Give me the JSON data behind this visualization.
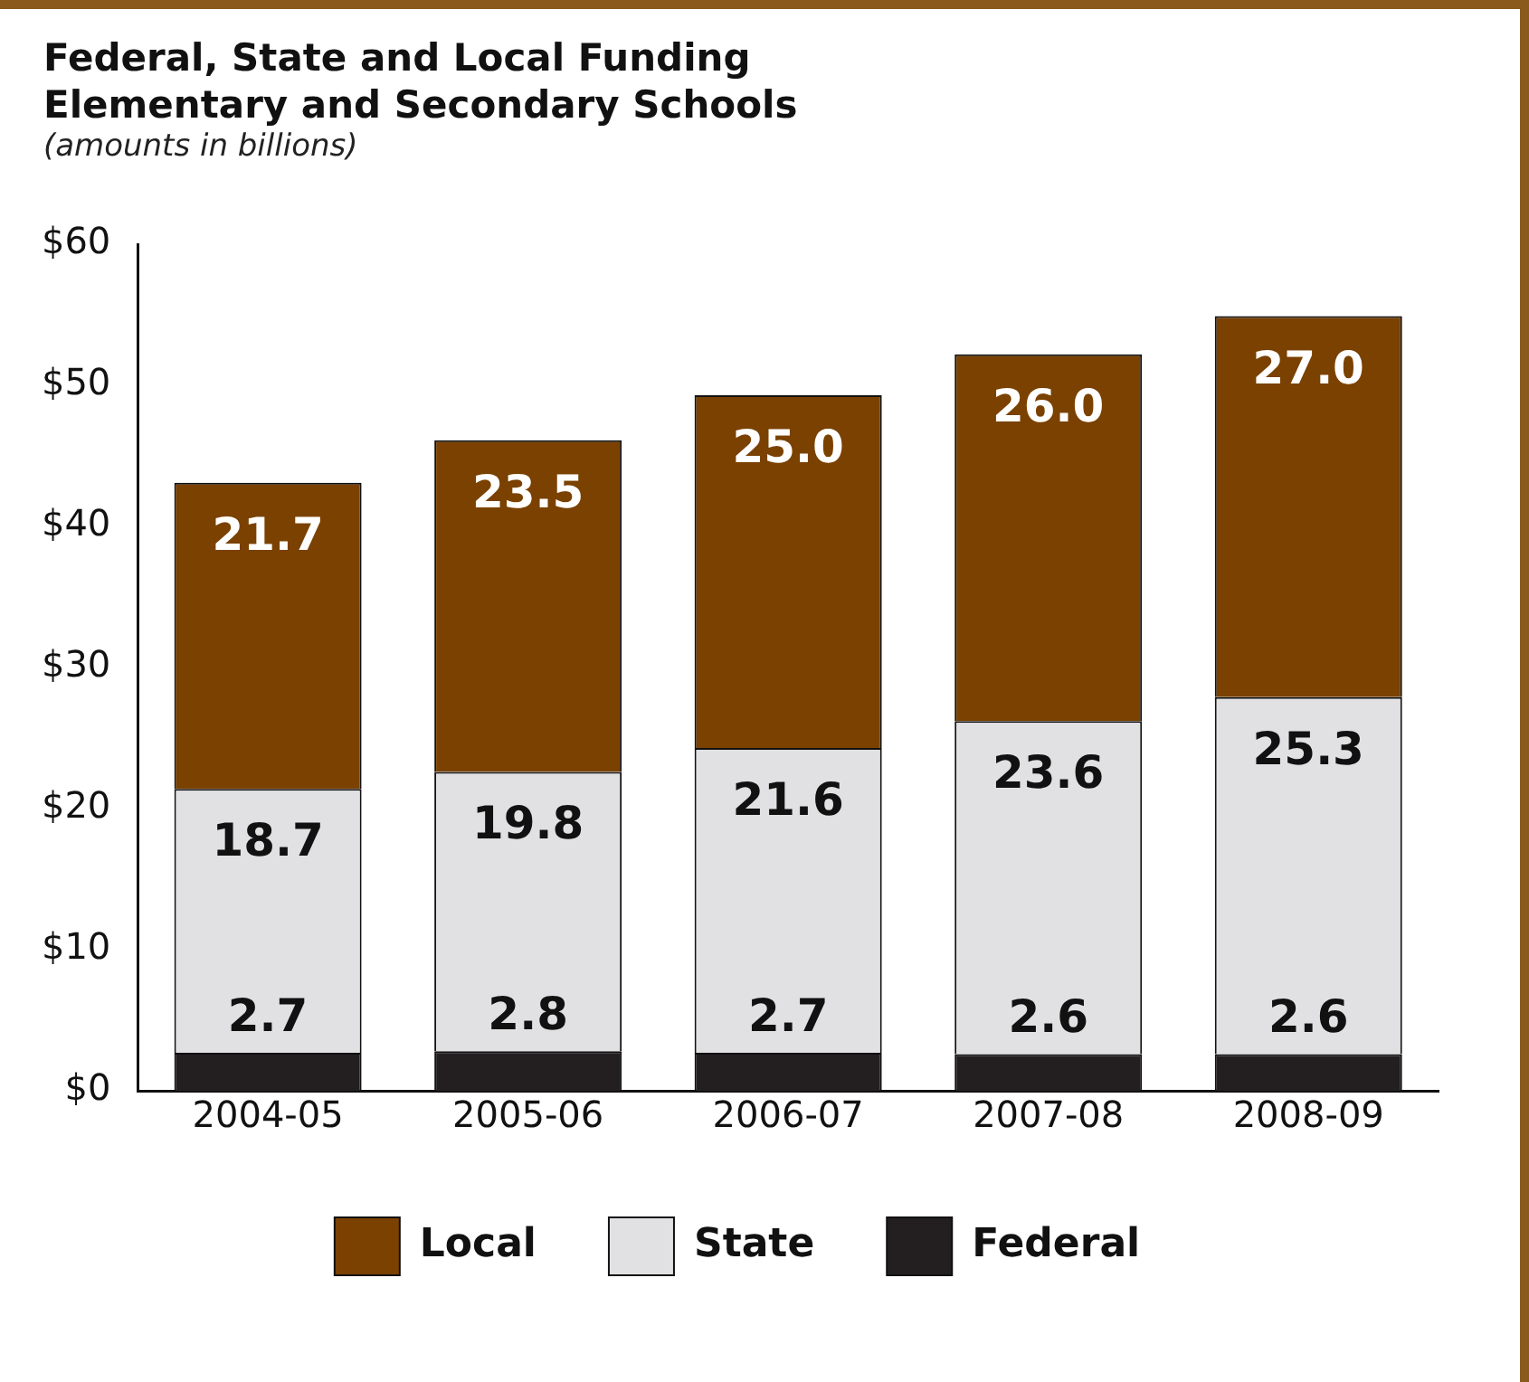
{
  "chart_data": {
    "type": "bar",
    "title": "Federal, State and Local Funding\nElementary and Secondary Schools",
    "subtitle": "(amounts in billions)",
    "categories": [
      "2004-05",
      "2005-06",
      "2006-07",
      "2007-08",
      "2008-09"
    ],
    "stacked": true,
    "series": [
      {
        "name": "Federal",
        "color": "#231f20",
        "values": [
          2.7,
          2.8,
          2.7,
          2.6,
          2.6
        ],
        "value_labels": [
          "2.7",
          "2.8",
          "2.7",
          "2.6",
          "2.6"
        ]
      },
      {
        "name": "State",
        "color": "#e1e1e3",
        "values": [
          18.7,
          19.8,
          21.6,
          23.6,
          25.3
        ],
        "value_labels": [
          "18.7",
          "19.8",
          "21.6",
          "23.6",
          "25.3"
        ]
      },
      {
        "name": "Local",
        "color": "#7a4100",
        "values": [
          21.7,
          23.5,
          25.0,
          26.0,
          27.0
        ],
        "value_labels": [
          "21.7",
          "23.5",
          "25.0",
          "26.0",
          "27.0"
        ]
      }
    ],
    "ylim": [
      0,
      60
    ],
    "yticks": [
      {
        "value": 0,
        "label": "$0"
      },
      {
        "value": 10,
        "label": "$10"
      },
      {
        "value": 20,
        "label": "$20"
      },
      {
        "value": 30,
        "label": "$30"
      },
      {
        "value": 40,
        "label": "$40"
      },
      {
        "value": 50,
        "label": "$50"
      },
      {
        "value": 60,
        "label": "$60"
      }
    ],
    "grid": false,
    "legend": "bottom"
  }
}
